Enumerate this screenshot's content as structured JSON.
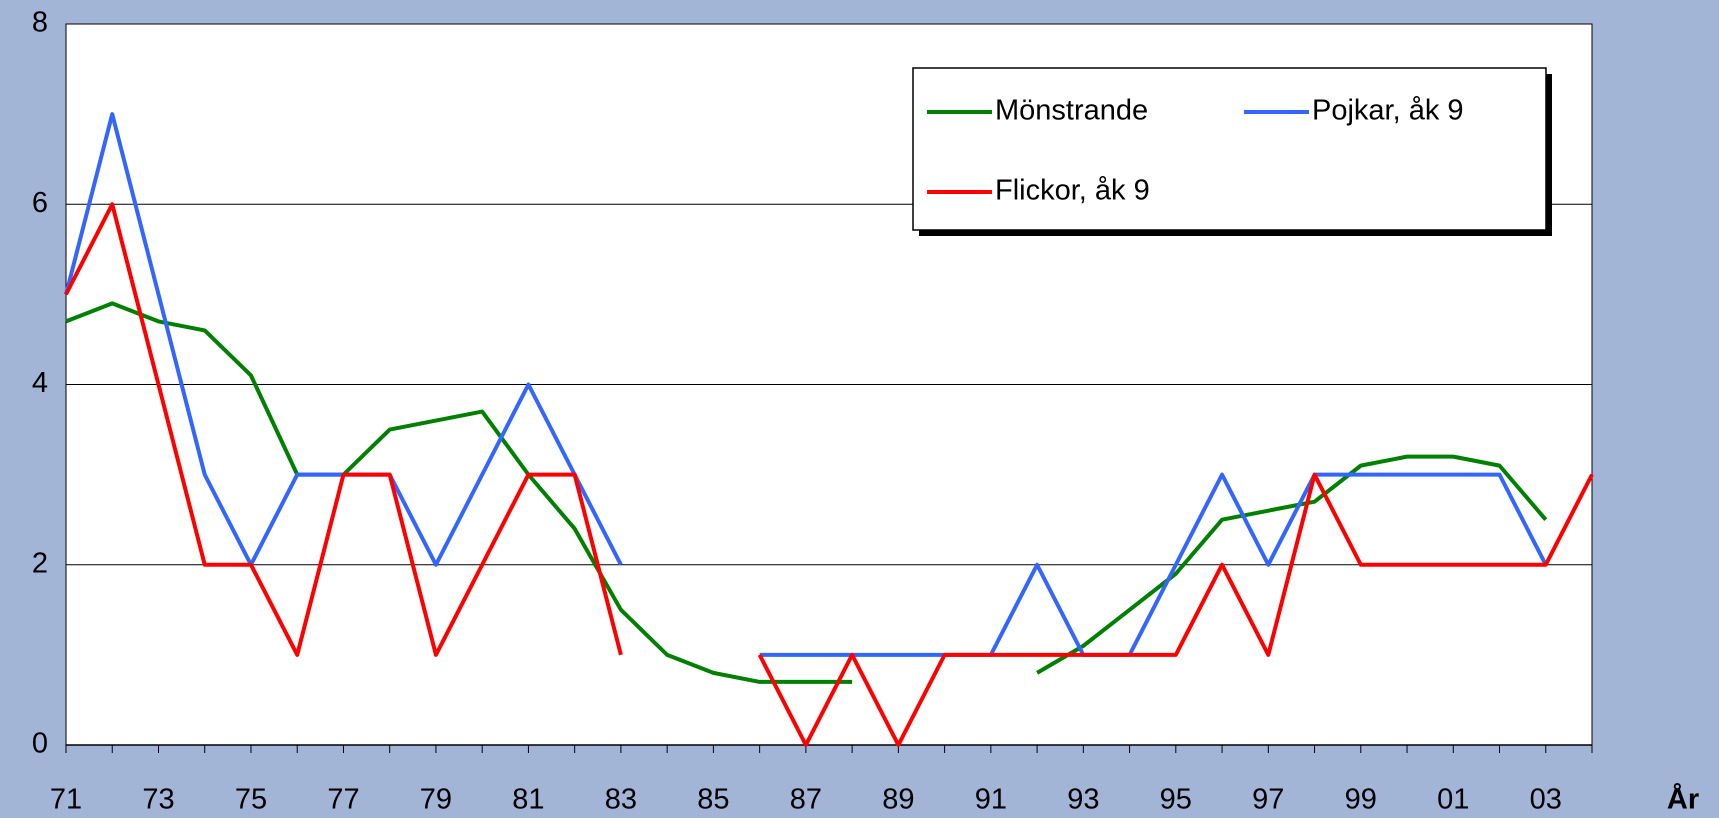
{
  "chart_data": {
    "type": "line",
    "x_label": "År",
    "categories": [
      "71",
      null,
      "73",
      null,
      "75",
      null,
      "77",
      null,
      "79",
      null,
      "81",
      null,
      "83",
      null,
      "85",
      null,
      "87",
      null,
      "89",
      null,
      "91",
      null,
      "93",
      null,
      "95",
      null,
      "97",
      null,
      "99",
      null,
      "01",
      null,
      "03",
      null
    ],
    "series": [
      {
        "name": "Mönstrande",
        "color": "#008000",
        "values": [
          4.7,
          4.9,
          4.7,
          4.6,
          4.1,
          3.0,
          3.0,
          3.5,
          3.6,
          3.7,
          3.0,
          2.4,
          1.5,
          1.0,
          0.8,
          0.7,
          0.7,
          0.7,
          null,
          null,
          null,
          0.8,
          1.1,
          1.5,
          1.9,
          2.5,
          2.6,
          2.7,
          3.1,
          3.2,
          3.2,
          3.1,
          2.5,
          null
        ]
      },
      {
        "name": "Pojkar, åk 9",
        "color": "#3366ff",
        "values": [
          5,
          7,
          5,
          3,
          2,
          3,
          3,
          3,
          2,
          3,
          4,
          3,
          2,
          null,
          null,
          1,
          1,
          1,
          1,
          1,
          1,
          2,
          1,
          1,
          2,
          3,
          2,
          3,
          3,
          3,
          3,
          3,
          2,
          null
        ]
      },
      {
        "name": "Flickor, åk 9",
        "color": "#ff0000",
        "values": [
          5,
          6,
          4,
          2,
          2,
          1,
          3,
          3,
          1,
          2,
          3,
          3,
          1,
          null,
          null,
          1,
          0,
          1,
          0,
          1,
          1,
          1,
          1,
          1,
          1,
          2,
          1,
          3,
          2,
          2,
          2,
          2,
          2,
          3
        ]
      }
    ],
    "ylim": [
      0,
      8
    ],
    "yticks": [
      0,
      2,
      4,
      6,
      8
    ],
    "grid": true,
    "legend": "top-right"
  }
}
